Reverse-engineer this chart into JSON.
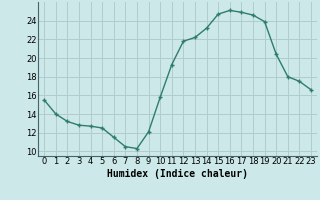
{
  "x": [
    0,
    1,
    2,
    3,
    4,
    5,
    6,
    7,
    8,
    9,
    10,
    11,
    12,
    13,
    14,
    15,
    16,
    17,
    18,
    19,
    20,
    21,
    22,
    23
  ],
  "y": [
    15.5,
    14.0,
    13.2,
    12.8,
    12.7,
    12.5,
    11.5,
    10.5,
    10.3,
    12.1,
    15.8,
    19.3,
    21.8,
    22.2,
    23.2,
    24.7,
    25.1,
    24.9,
    24.6,
    23.9,
    20.4,
    18.0,
    17.5,
    16.6
  ],
  "xlabel": "Humidex (Indice chaleur)",
  "xlim": [
    -0.5,
    23.5
  ],
  "ylim": [
    9.5,
    26.0
  ],
  "yticks": [
    10,
    12,
    14,
    16,
    18,
    20,
    22,
    24
  ],
  "xticks": [
    0,
    1,
    2,
    3,
    4,
    5,
    6,
    7,
    8,
    9,
    10,
    11,
    12,
    13,
    14,
    15,
    16,
    17,
    18,
    19,
    20,
    21,
    22,
    23
  ],
  "line_color": "#2d7d6e",
  "bg_color": "#cce8e8",
  "grid_color": "#b0cccc",
  "xlabel_fontsize": 7,
  "tick_fontsize": 6
}
